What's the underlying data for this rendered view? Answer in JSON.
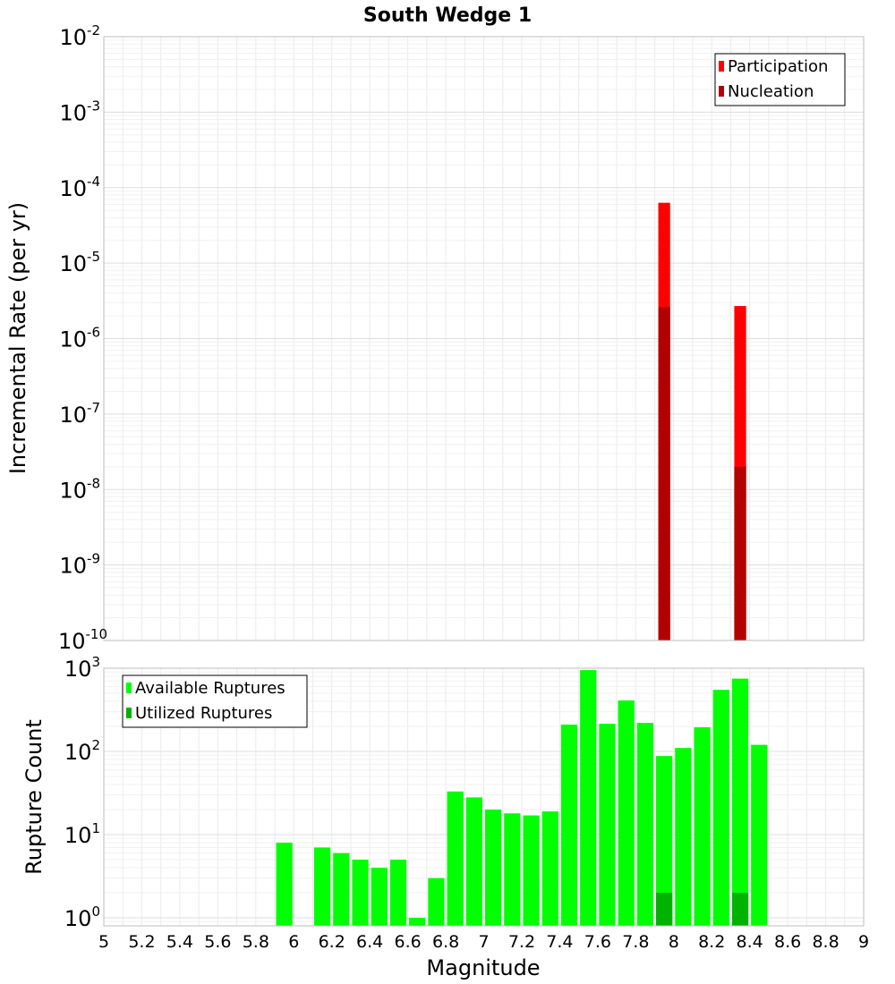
{
  "chart_data": [
    {
      "type": "bar",
      "title": "South Wedge 1",
      "ylabel": "Incremental Rate (per yr)",
      "xlabel": "",
      "yscale": "log",
      "ylim": [
        1e-10,
        0.01
      ],
      "xlim": [
        5,
        9
      ],
      "ytick_exponents": [
        "-10",
        "-9",
        "-8",
        "-7",
        "-6",
        "-5",
        "-4",
        "-3",
        "-2"
      ],
      "ytick_base": "10",
      "legend": {
        "placement": "top-right",
        "entries": [
          {
            "label": "Participation",
            "color": "#ff0000"
          },
          {
            "label": "Nucleation",
            "color": "#b30000"
          }
        ]
      },
      "series": [
        {
          "name": "Participation",
          "color": "#ff0000",
          "x": [
            7.95,
            8.35
          ],
          "values": [
            6.3e-05,
            2.7e-06
          ]
        },
        {
          "name": "Nucleation",
          "color": "#b30000",
          "x": [
            7.95,
            8.35
          ],
          "values": [
            2.6e-06,
            2e-08
          ]
        }
      ],
      "bin_width": 0.1
    },
    {
      "type": "bar",
      "title": "",
      "ylabel": "Rupture Count",
      "xlabel": "Magnitude",
      "yscale": "log",
      "ylim": [
        0.8,
        1000
      ],
      "xlim": [
        5,
        9
      ],
      "ytick_exponents": [
        "0",
        "1",
        "2",
        "3"
      ],
      "ytick_base": "10",
      "xticks": [
        "5",
        "5.2",
        "5.4",
        "5.6",
        "5.8",
        "6",
        "6.2",
        "6.4",
        "6.6",
        "6.8",
        "7",
        "7.2",
        "7.4",
        "7.6",
        "7.8",
        "8",
        "8.2",
        "8.4",
        "8.6",
        "8.8",
        "9"
      ],
      "legend": {
        "placement": "top-left",
        "entries": [
          {
            "label": "Available Ruptures",
            "color": "#00ff00"
          },
          {
            "label": "Utilized Ruptures",
            "color": "#00b300"
          }
        ]
      },
      "series": [
        {
          "name": "Available Ruptures",
          "color": "#00ff00",
          "x": [
            5.95,
            6.15,
            6.25,
            6.35,
            6.45,
            6.55,
            6.65,
            6.75,
            6.85,
            6.95,
            7.05,
            7.15,
            7.25,
            7.35,
            7.45,
            7.55,
            7.65,
            7.75,
            7.85,
            7.95,
            8.05,
            8.15,
            8.25,
            8.35,
            8.45
          ],
          "values": [
            8,
            7,
            6,
            5,
            4,
            5,
            1,
            3,
            33,
            28,
            20,
            18,
            17,
            19,
            210,
            950,
            215,
            410,
            220,
            88,
            110,
            195,
            550,
            750,
            120
          ]
        },
        {
          "name": "Utilized Ruptures",
          "color": "#00b300",
          "x": [
            7.95,
            8.35
          ],
          "values": [
            2,
            2
          ]
        }
      ],
      "bin_width": 0.1
    }
  ]
}
